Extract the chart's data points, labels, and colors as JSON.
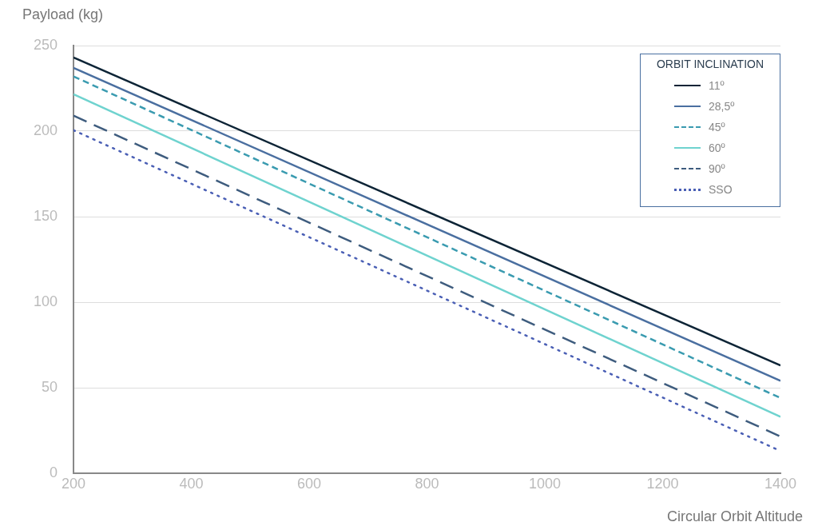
{
  "chart_data": {
    "type": "line",
    "xlabel": "Circular Orbit Altitude",
    "ylabel": "Payload (kg)",
    "legend_title": "ORBIT INCLINATION",
    "legend": "top right",
    "grid": "y",
    "marker": "none",
    "xlim": [
      200,
      1400
    ],
    "xticks": [
      200,
      400,
      600,
      800,
      1000,
      1200,
      1400
    ],
    "ylim": [
      0,
      250
    ],
    "yticks": [
      0,
      50,
      100,
      150,
      200,
      250
    ],
    "x": [
      200,
      1400
    ],
    "series": [
      {
        "name": "11º",
        "color": "#0d2436",
        "line_style": "solid",
        "values": [
          243,
          63
        ]
      },
      {
        "name": "28,5º",
        "color": "#4a6fa0",
        "line_style": "solid",
        "values": [
          237,
          54
        ]
      },
      {
        "name": "45º",
        "color": "#3a9bb0",
        "line_style": "dashed",
        "values": [
          232,
          44
        ]
      },
      {
        "name": "60º",
        "color": "#6fd3cf",
        "line_style": "solid",
        "values": [
          221.5,
          33
        ]
      },
      {
        "name": "90º",
        "color": "#3e5c7e",
        "line_style": "longdash",
        "values": [
          209,
          21.5
        ]
      },
      {
        "name": "SSO",
        "color": "#4a5fb5",
        "line_style": "dotted",
        "values": [
          200.5,
          13
        ]
      }
    ]
  }
}
